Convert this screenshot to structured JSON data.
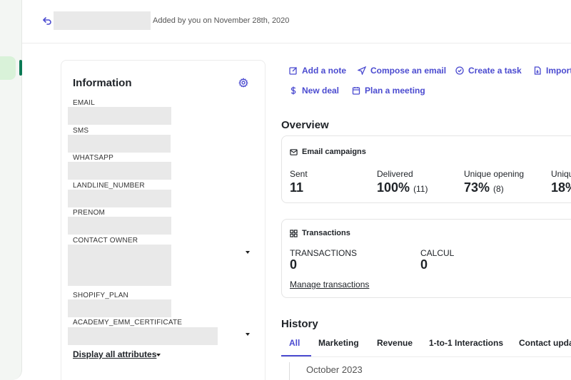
{
  "header": {
    "added_by": "Added by you on November 28th, 2020"
  },
  "info": {
    "title": "Information",
    "attributes": [
      {
        "label": "EMAIL"
      },
      {
        "label": "SMS"
      },
      {
        "label": "WHATSAPP"
      },
      {
        "label": "LANDLINE_NUMBER"
      },
      {
        "label": "PRENOM"
      },
      {
        "label": "CONTACT OWNER"
      },
      {
        "label": "SHOPIFY_PLAN"
      },
      {
        "label": "ACADEMY_EMM_CERTIFICATE"
      }
    ],
    "display_all": "Display all attributes"
  },
  "actions": {
    "add_note": "Add a note",
    "compose_email": "Compose an email",
    "create_task": "Create a task",
    "import": "Import",
    "new_deal": "New deal",
    "plan_meeting": "Plan a meeting"
  },
  "overview": {
    "title": "Overview",
    "email_campaigns": {
      "title": "Email campaigns",
      "sent_label": "Sent",
      "sent_value": "11",
      "delivered_label": "Delivered",
      "delivered_value": "100%",
      "delivered_count": "(11)",
      "unique_opening_label": "Unique opening",
      "unique_opening_value": "73%",
      "unique_opening_count": "(8)",
      "unique_click_label": "Uniqu",
      "unique_click_value": "18%"
    },
    "transactions": {
      "title": "Transactions",
      "transactions_label": "TRANSACTIONS",
      "transactions_value": "0",
      "calcul_label": "CALCUL",
      "calcul_value": "0",
      "manage_link": "Manage transactions"
    }
  },
  "history": {
    "title": "History",
    "tabs": [
      "All",
      "Marketing",
      "Revenue",
      "1-to-1 Interactions",
      "Contact upda"
    ],
    "active_tab": "All",
    "month": "October 2023"
  },
  "colors": {
    "accent": "#4b4bd0",
    "brand_green": "#0b7a55"
  }
}
